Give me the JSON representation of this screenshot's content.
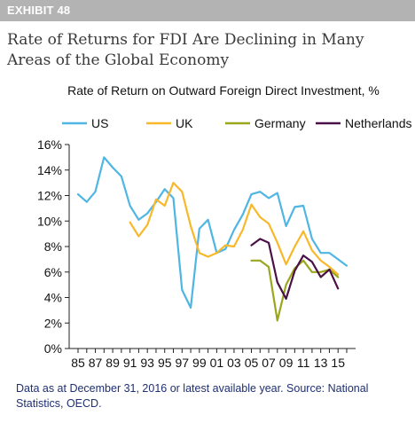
{
  "exhibit": {
    "label": "EXHIBIT 48"
  },
  "headline": "Rate of Returns for FDI Are Declining in Many Areas of the Global Economy",
  "source_note": "Data as at December 31, 2016 or latest available year. Source: National Statistics, OECD.",
  "chart_data": {
    "type": "line",
    "title": "Rate of Return on Outward Foreign Direct Investment, %",
    "xlabel": "",
    "ylabel": "",
    "xlim": [
      1985,
      2016
    ],
    "ylim": [
      0,
      16
    ],
    "y_ticks": [
      0,
      2,
      4,
      6,
      8,
      10,
      12,
      14,
      16
    ],
    "y_tick_labels": [
      "0%",
      "2%",
      "4%",
      "6%",
      "8%",
      "10%",
      "12%",
      "14%",
      "16%"
    ],
    "x_ticks": [
      1985,
      1987,
      1989,
      1991,
      1993,
      1995,
      1997,
      1999,
      2001,
      2003,
      2005,
      2007,
      2009,
      2011,
      2013,
      2015
    ],
    "x_tick_labels": [
      "85",
      "87",
      "89",
      "91",
      "93",
      "95",
      "97",
      "99",
      "01",
      "03",
      "05",
      "07",
      "09",
      "11",
      "13",
      "15"
    ],
    "grid": false,
    "legend_position": "top",
    "series": [
      {
        "name": "US",
        "color": "#4fb6e4",
        "x": [
          1985,
          1986,
          1987,
          1988,
          1989,
          1990,
          1991,
          1992,
          1993,
          1994,
          1995,
          1996,
          1997,
          1998,
          1999,
          2000,
          2001,
          2002,
          2003,
          2004,
          2005,
          2006,
          2007,
          2008,
          2009,
          2010,
          2011,
          2012,
          2013,
          2014,
          2015,
          2016
        ],
        "values": [
          12.1,
          11.5,
          12.3,
          15.0,
          14.2,
          13.5,
          11.2,
          10.1,
          10.6,
          11.5,
          12.5,
          11.8,
          4.6,
          3.2,
          9.4,
          10.1,
          7.5,
          7.8,
          9.3,
          10.5,
          12.1,
          12.3,
          11.8,
          12.2,
          9.6,
          11.1,
          11.2,
          8.6,
          7.5,
          7.5,
          7.0,
          6.5
        ]
      },
      {
        "name": "UK",
        "color": "#f8b82a",
        "x": [
          1991,
          1992,
          1993,
          1994,
          1995,
          1996,
          1997,
          1998,
          1999,
          2000,
          2001,
          2002,
          2003,
          2004,
          2005,
          2006,
          2007,
          2008,
          2009,
          2010,
          2011,
          2012,
          2013,
          2014,
          2015
        ],
        "values": [
          9.9,
          8.8,
          9.7,
          11.7,
          11.2,
          13.0,
          12.3,
          9.6,
          7.5,
          7.2,
          7.5,
          8.1,
          8.0,
          9.3,
          11.3,
          10.3,
          9.8,
          8.3,
          6.6,
          8.0,
          9.2,
          7.7,
          6.9,
          6.4,
          5.8
        ]
      },
      {
        "name": "Germany",
        "color": "#9aa61c",
        "x": [
          2005,
          2006,
          2007,
          2008,
          2009,
          2010,
          2011,
          2012,
          2013,
          2014,
          2015
        ],
        "values": [
          6.9,
          6.9,
          6.4,
          2.2,
          5.0,
          6.3,
          6.9,
          6.0,
          6.0,
          6.2,
          5.6
        ]
      },
      {
        "name": "Netherlands",
        "color": "#4b1047",
        "x": [
          2005,
          2006,
          2007,
          2008,
          2009,
          2010,
          2011,
          2012,
          2013,
          2014,
          2015
        ],
        "values": [
          8.1,
          8.6,
          8.3,
          5.2,
          3.9,
          6.1,
          7.3,
          6.8,
          5.6,
          6.2,
          4.7
        ]
      }
    ]
  }
}
